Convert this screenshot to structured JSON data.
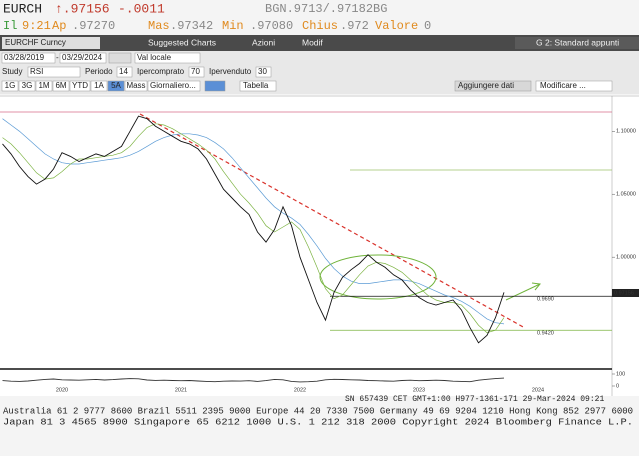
{
  "header": {
    "ticker": "EURCH",
    "last": "↑.97156",
    "change": "-.0011",
    "bid_ask": "BGN.9713/.97182BG"
  },
  "quote": {
    "flag": "Il",
    "time": "9:21",
    "time_suffix": "Ap",
    "open": ".97270",
    "high_label": "Mas",
    "high": ".97342",
    "low_label": "Min",
    "low": ".97080",
    "close_label": "Chius",
    "close": ".972",
    "volume_label": "Valore",
    "volume": "0"
  },
  "toolbar": {
    "security": "EURCHF Curncy",
    "suggested": "Suggested Charts",
    "actions": "Azioni",
    "edit": "Modif",
    "layout": "G 2: Standard appunti"
  },
  "range": {
    "start": "03/28/2019",
    "separator": "-",
    "end": "03/29/2024",
    "currency": "Val locale"
  },
  "study": {
    "label": "Study",
    "name": "RSI",
    "period_label": "Periodo",
    "period": "14",
    "overbought_label": "Ipercomprato",
    "overbought": "70",
    "oversold_label": "Ipervenduto",
    "oversold": "30"
  },
  "periods": {
    "buttons": [
      "1G",
      "3G",
      "1M",
      "6M",
      "YTD",
      "1A",
      "5A",
      "Mass"
    ],
    "active": 6,
    "frequency": "Giornaliero...",
    "table": "Tabella",
    "add_data": "Aggiungere dati",
    "modify": "Modificare ..."
  },
  "chart_data": [
    {
      "type": "line",
      "categories": [
        null,
        null,
        null,
        null,
        null,
        null,
        null,
        "2020",
        null,
        null,
        null,
        null,
        null,
        null,
        null,
        null,
        null,
        null,
        null,
        null,
        null,
        "2021",
        null,
        null,
        null,
        null,
        null,
        null,
        null,
        null,
        null,
        null,
        null,
        null,
        null,
        "2022",
        null,
        null,
        null,
        null,
        null,
        null,
        null,
        null,
        null,
        null,
        null,
        null,
        null,
        "2023",
        null,
        null,
        null,
        null,
        null,
        null,
        null,
        null,
        null,
        null,
        null,
        null,
        null,
        "2024"
      ],
      "series": [
        {
          "color": "#111111",
          "values": [
            1.09,
            1.082,
            1.072,
            1.064,
            1.058,
            1.062,
            1.07,
            1.083,
            1.08,
            1.076,
            1.079,
            1.082,
            1.08,
            1.084,
            1.088,
            1.1,
            1.112,
            1.11,
            1.104,
            1.1,
            1.096,
            1.092,
            1.09,
            1.086,
            1.078,
            1.066,
            1.054,
            1.047,
            1.04,
            1.034,
            1.02,
            1.012,
            1.022,
            1.04,
            1.025,
            1.0,
            0.982,
            0.964,
            0.95,
            0.972,
            0.984,
            0.99,
            0.995,
            1.002,
            0.996,
            0.992,
            0.986,
            0.982,
            0.974,
            0.968,
            0.964,
            0.962,
            0.964,
            0.966,
            0.958,
            0.944,
            0.932,
            0.938,
            0.952,
            0.972,
            null,
            null,
            null,
            null
          ]
        },
        {
          "color": "#7cb342",
          "values": [
            1.095,
            1.09,
            1.083,
            1.075,
            1.067,
            1.062,
            1.063,
            1.068,
            1.074,
            1.078,
            1.078,
            1.079,
            1.08,
            1.081,
            1.083,
            1.088,
            1.096,
            1.103,
            1.106,
            1.105,
            1.102,
            1.098,
            1.094,
            1.09,
            1.085,
            1.078,
            1.068,
            1.059,
            1.05,
            1.043,
            1.035,
            1.025,
            1.02,
            1.024,
            1.028,
            1.022,
            1.008,
            0.992,
            0.975,
            0.967,
            0.97,
            0.978,
            0.986,
            0.993,
            0.996,
            0.995,
            0.992,
            0.988,
            0.982,
            0.976,
            0.97,
            0.966,
            0.964,
            0.964,
            0.962,
            0.955,
            0.946,
            0.94,
            0.942,
            0.952,
            null,
            null,
            null,
            null
          ]
        },
        {
          "color": "#5b9bd5",
          "values": [
            1.11,
            1.105,
            1.1,
            1.094,
            1.088,
            1.082,
            1.078,
            1.075,
            1.074,
            1.074,
            1.075,
            1.076,
            1.077,
            1.078,
            1.079,
            1.081,
            1.084,
            1.088,
            1.092,
            1.095,
            1.097,
            1.098,
            1.098,
            1.097,
            1.095,
            1.091,
            1.086,
            1.079,
            1.071,
            1.063,
            1.055,
            1.047,
            1.04,
            1.035,
            1.031,
            1.026,
            1.018,
            1.009,
            0.999,
            0.991,
            0.985,
            0.981,
            0.979,
            0.979,
            0.98,
            0.981,
            0.982,
            0.982,
            0.981,
            0.979,
            0.976,
            0.973,
            0.97,
            0.968,
            0.965,
            0.961,
            0.956,
            0.951,
            0.948,
            0.947,
            null,
            null,
            null,
            null
          ]
        }
      ],
      "ylim": [
        0.912,
        1.128
      ],
      "yticks": [
        {
          "value": 1.1,
          "label": "1.10000"
        },
        {
          "value": 1.05,
          "label": "1.05000"
        },
        {
          "value": 1,
          "label": "1.00000"
        }
      ],
      "levels": [
        {
          "value": 0.969,
          "label": "0.9690",
          "color": "#111111"
        },
        {
          "value": 0.942,
          "label": "0.9420",
          "color": "#7cb342"
        }
      ],
      "last_price": {
        "value": 0.97156,
        "label": "0.97156"
      }
    },
    {
      "type": "line",
      "series": [
        {
          "color": "#333333",
          "values": [
            45,
            40,
            38,
            42,
            48,
            55,
            58,
            52,
            50,
            48,
            52,
            55,
            50,
            53,
            58,
            62,
            60,
            50,
            47,
            48,
            46,
            44,
            46,
            42,
            38,
            36,
            40,
            42,
            41,
            44,
            38,
            45,
            55,
            52,
            38,
            34,
            36,
            40,
            52,
            56,
            54,
            52,
            50,
            46,
            44,
            42,
            40,
            46,
            48,
            44,
            46,
            48,
            46,
            40,
            38,
            36,
            48,
            56,
            62,
            66,
            null,
            null,
            null,
            null
          ]
        }
      ],
      "ylim": [
        0,
        100
      ],
      "yticks": [
        0,
        100
      ]
    }
  ],
  "footer": {
    "status": "SN 657439 CET GMT+1:00 H977-1361-171 29-Mar-2024 09:21",
    "contacts_1": "Australia 61 2 9777 8600 Brazil 5511 2395 9000 Europe 44 20 7330 7500 Germany 49 69 9204 1210 Hong Kong 852 2977 6000",
    "contacts_2": "Japan 81 3 4565 8900 Singapore 65 6212 1000 U.S. 1 212 318 2000 Copyright 2024 Bloomberg Finance L.P."
  }
}
